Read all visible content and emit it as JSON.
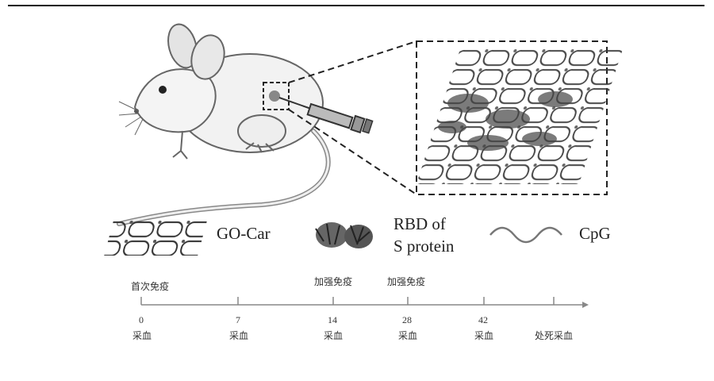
{
  "legend": {
    "go_car": "GO-Car",
    "rbd_line1": "RBD of",
    "rbd_line2": "S protein",
    "cpg": "CpG"
  },
  "timeline": {
    "events_top": [
      "首次免疫",
      "加强免疫",
      "加强免疫"
    ],
    "days": [
      "0",
      "7",
      "14",
      "28",
      "42"
    ],
    "events_bottom": [
      "采血",
      "采血",
      "采血",
      "采血",
      "采血",
      "处死采血"
    ]
  }
}
